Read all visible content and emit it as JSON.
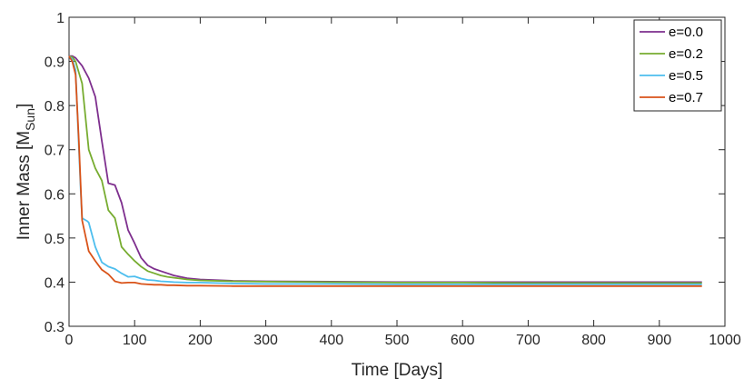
{
  "chart_data": {
    "type": "line",
    "xlabel": "Time [Days]",
    "ylabel_main": "Inner Mass [M",
    "ylabel_sub": "Sun",
    "ylabel_end": "]",
    "xlim": [
      0,
      1000
    ],
    "ylim": [
      0.3,
      1
    ],
    "xticks": [
      0,
      100,
      200,
      300,
      400,
      500,
      600,
      700,
      800,
      900,
      1000
    ],
    "yticks": [
      0.3,
      0.4,
      0.5,
      0.6,
      0.7,
      0.8,
      0.9,
      1
    ],
    "grid": false,
    "legend_position": "top-right",
    "series": [
      {
        "name": "e=0.0",
        "color": "#7E2F8E",
        "x": [
          0,
          5,
          10,
          20,
          30,
          40,
          50,
          60,
          70,
          80,
          90,
          100,
          110,
          120,
          130,
          140,
          150,
          160,
          170,
          180,
          200,
          250,
          300,
          400,
          500,
          600,
          700,
          800,
          900,
          965
        ],
        "y": [
          0.912,
          0.912,
          0.908,
          0.89,
          0.862,
          0.82,
          0.72,
          0.624,
          0.62,
          0.58,
          0.518,
          0.488,
          0.455,
          0.438,
          0.43,
          0.425,
          0.42,
          0.415,
          0.412,
          0.409,
          0.406,
          0.403,
          0.402,
          0.401,
          0.4,
          0.4,
          0.4,
          0.4,
          0.4,
          0.4
        ]
      },
      {
        "name": "e=0.2",
        "color": "#77AC30",
        "x": [
          0,
          5,
          10,
          20,
          30,
          40,
          50,
          60,
          70,
          80,
          90,
          100,
          110,
          120,
          130,
          140,
          150,
          160,
          170,
          180,
          200,
          250,
          300,
          400,
          500,
          600,
          700,
          800,
          900,
          965
        ],
        "y": [
          0.912,
          0.91,
          0.9,
          0.85,
          0.7,
          0.658,
          0.63,
          0.563,
          0.545,
          0.48,
          0.463,
          0.448,
          0.435,
          0.425,
          0.42,
          0.415,
          0.412,
          0.41,
          0.408,
          0.406,
          0.404,
          0.402,
          0.401,
          0.4,
          0.399,
          0.399,
          0.398,
          0.398,
          0.398,
          0.398
        ]
      },
      {
        "name": "e=0.5",
        "color": "#4DBEEE",
        "x": [
          0,
          5,
          10,
          18,
          20,
          28,
          30,
          40,
          50,
          60,
          70,
          80,
          90,
          100,
          110,
          120,
          130,
          140,
          150,
          160,
          180,
          200,
          250,
          300,
          400,
          500,
          600,
          700,
          800,
          900,
          965
        ],
        "y": [
          0.912,
          0.905,
          0.88,
          0.6,
          0.545,
          0.538,
          0.535,
          0.48,
          0.445,
          0.435,
          0.43,
          0.42,
          0.412,
          0.413,
          0.408,
          0.405,
          0.404,
          0.402,
          0.401,
          0.4,
          0.399,
          0.399,
          0.397,
          0.396,
          0.396,
          0.395,
          0.395,
          0.395,
          0.395,
          0.395,
          0.395
        ]
      },
      {
        "name": "e=0.7",
        "color": "#D95319",
        "x": [
          0,
          5,
          10,
          15,
          20,
          30,
          40,
          50,
          60,
          70,
          80,
          90,
          100,
          110,
          120,
          130,
          140,
          150,
          160,
          180,
          200,
          250,
          300,
          400,
          500,
          600,
          700,
          800,
          900,
          965
        ],
        "y": [
          0.912,
          0.9,
          0.87,
          0.72,
          0.54,
          0.47,
          0.448,
          0.428,
          0.418,
          0.402,
          0.398,
          0.399,
          0.399,
          0.396,
          0.395,
          0.394,
          0.394,
          0.393,
          0.393,
          0.392,
          0.392,
          0.391,
          0.391,
          0.391,
          0.391,
          0.391,
          0.391,
          0.391,
          0.391,
          0.391
        ]
      }
    ]
  }
}
